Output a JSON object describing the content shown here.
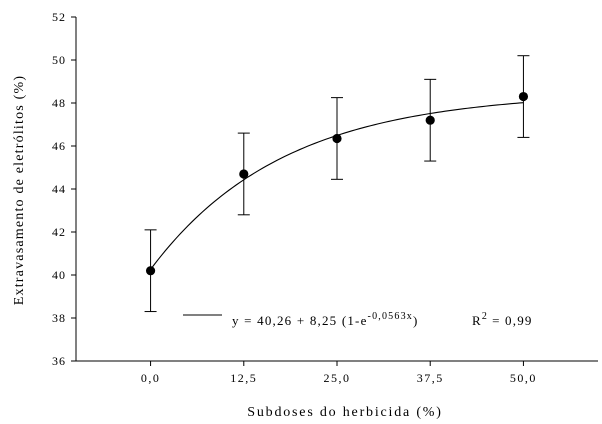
{
  "chart_data": {
    "type": "scatter",
    "xlabel": "Subdoses do herbicida (%)",
    "ylabel": "Extravasamento de eletrólitos (%)",
    "xlim": [
      -10,
      60
    ],
    "ylim": [
      36,
      52
    ],
    "x_ticks": [
      0,
      12.5,
      25,
      37.5,
      50
    ],
    "x_tick_labels": [
      "0,0",
      "12,5",
      "25,0",
      "37,5",
      "50,0"
    ],
    "y_ticks": [
      36,
      38,
      40,
      42,
      44,
      46,
      48,
      50,
      52
    ],
    "y_tick_labels": [
      "36",
      "38",
      "40",
      "42",
      "44",
      "46",
      "48",
      "50",
      "52"
    ],
    "grid": false,
    "series": [
      {
        "x": [
          0,
          12.5,
          25,
          37.5,
          50
        ],
        "y": [
          40.2,
          44.7,
          46.35,
          47.2,
          48.3
        ],
        "error": [
          1.9,
          1.9,
          1.9,
          1.9,
          1.9
        ]
      }
    ],
    "fit": {
      "model": "y = a + b(1 - e^(-c x))",
      "a": 40.26,
      "b": 8.25,
      "c": 0.0563,
      "x_range": [
        0,
        50
      ]
    },
    "legend": {
      "position": "bottom-center",
      "equation_main": "y = 40,26 + 8,25 (1-e",
      "equation_exponent": "-0,0563x",
      "equation_close": ")",
      "r2_label": "R",
      "r2_exponent": "2",
      "r2_value": "= 0,99"
    }
  }
}
